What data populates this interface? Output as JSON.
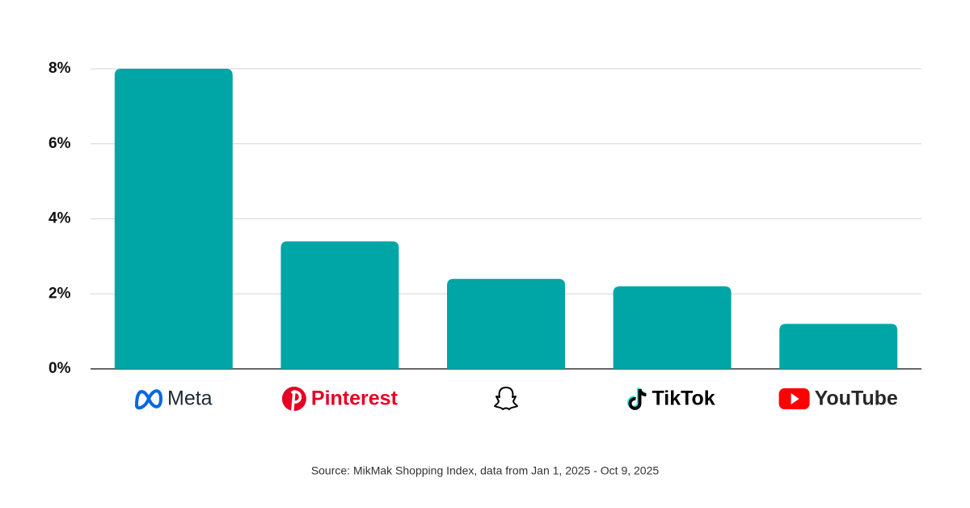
{
  "chart_data": {
    "type": "bar",
    "categories": [
      "Meta",
      "Pinterest",
      null,
      "TikTok",
      "YouTube"
    ],
    "values": [
      8,
      3.4,
      2.4,
      2.2,
      1.2
    ],
    "color": "#00a6a6",
    "ylim": [
      0,
      8
    ],
    "yticks": [
      {
        "value": 0,
        "label": "0%"
      },
      {
        "value": 2,
        "label": "2%"
      },
      {
        "value": 4,
        "label": "4%"
      },
      {
        "value": 6,
        "label": "6%"
      },
      {
        "value": 8,
        "label": "8%"
      }
    ],
    "grid": true,
    "source": "Source: MikMak Shopping Index, data from Jan 1, 2025 - Oct 9, 2025"
  }
}
